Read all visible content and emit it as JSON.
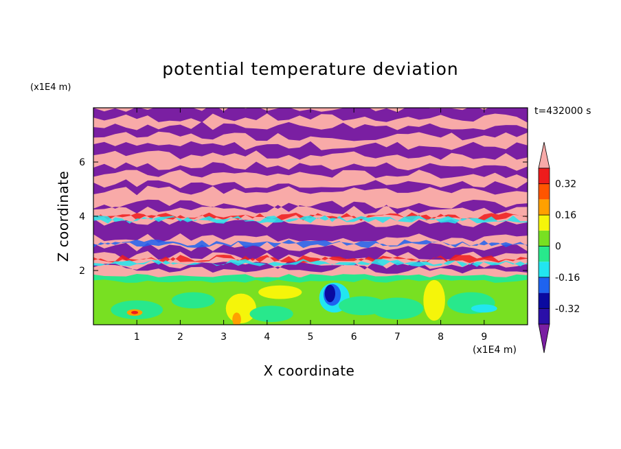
{
  "chart_data": {
    "type": "heatmap",
    "title": "potential temperature deviation",
    "xlabel": "X coordinate",
    "ylabel": "Z coordinate",
    "x_unit": "(x1E4 m)",
    "y_unit": "(x1E4 m)",
    "time_label": "t=432000 s",
    "xlim": [
      0,
      10
    ],
    "ylim": [
      0,
      8
    ],
    "x_ticks": [
      1,
      2,
      3,
      4,
      5,
      6,
      7,
      8,
      9
    ],
    "y_ticks": [
      2,
      4,
      6
    ],
    "colorbar": {
      "tick_labels": [
        "0.32",
        "0.16",
        "0",
        "-0.16",
        "-0.32"
      ],
      "tick_values": [
        0.32,
        0.16,
        0,
        -0.16,
        -0.32
      ],
      "levels": [
        -0.4,
        -0.32,
        -0.24,
        -0.16,
        -0.08,
        0,
        0.08,
        0.16,
        0.24,
        0.32,
        0.4
      ],
      "colors": [
        "#7a1fa2",
        "#2a0fa8",
        "#0a0aa0",
        "#1e63f0",
        "#22e6f0",
        "#28e88c",
        "#78e022",
        "#f5f50a",
        "#ffa000",
        "#ff5500",
        "#ee1c1c",
        "#f8aaa8"
      ]
    }
  },
  "colors": {
    "purple": "#7a1fa2",
    "pink": "#f8aaa8",
    "green": "#78e022",
    "lightgreen": "#28e88c",
    "yellow": "#f5f50a",
    "cyan": "#22e6f0",
    "blue": "#1e63f0",
    "navy": "#0a0aa0",
    "orange": "#ffa000",
    "red": "#ee1c1c"
  }
}
